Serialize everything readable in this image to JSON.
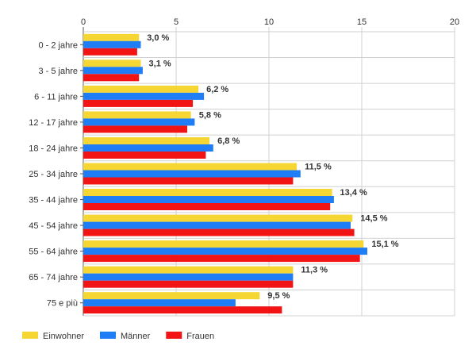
{
  "chart_data": {
    "type": "bar",
    "orientation": "horizontal",
    "title": "",
    "xlabel": "",
    "ylabel": "",
    "xlim": [
      0,
      20
    ],
    "x_ticks": [
      "0",
      "5",
      "10",
      "15",
      "20"
    ],
    "grid": true,
    "legend_position": "bottom-left",
    "categories": [
      "0 - 2 jahre",
      "3 - 5 jahre",
      "6 - 11 jahre",
      "12 - 17 jahre",
      "18 - 24 jahre",
      "25 - 34 jahre",
      "35 - 44 jahre",
      "45 - 54 jahre",
      "55 - 64 jahre",
      "65 - 74 jahre",
      "75 e più"
    ],
    "series": [
      {
        "name": "Einwohner",
        "color": "#f5d633",
        "values": [
          3.0,
          3.1,
          6.2,
          5.8,
          6.8,
          11.5,
          13.4,
          14.5,
          15.1,
          11.3,
          9.5
        ]
      },
      {
        "name": "Männer",
        "color": "#1f7ef5",
        "values": [
          3.1,
          3.2,
          6.5,
          6.0,
          7.0,
          11.7,
          13.5,
          14.4,
          15.3,
          11.3,
          8.2
        ]
      },
      {
        "name": "Frauen",
        "color": "#f21414",
        "values": [
          2.9,
          3.0,
          5.9,
          5.6,
          6.6,
          11.3,
          13.3,
          14.6,
          14.9,
          11.3,
          10.7
        ]
      }
    ],
    "data_labels": [
      "3,0 %",
      "3,1 %",
      "6,2 %",
      "5,8 %",
      "6,8 %",
      "11,5 %",
      "13,4 %",
      "14,5 %",
      "15,1 %",
      "11,3 %",
      "9,5 %"
    ]
  }
}
